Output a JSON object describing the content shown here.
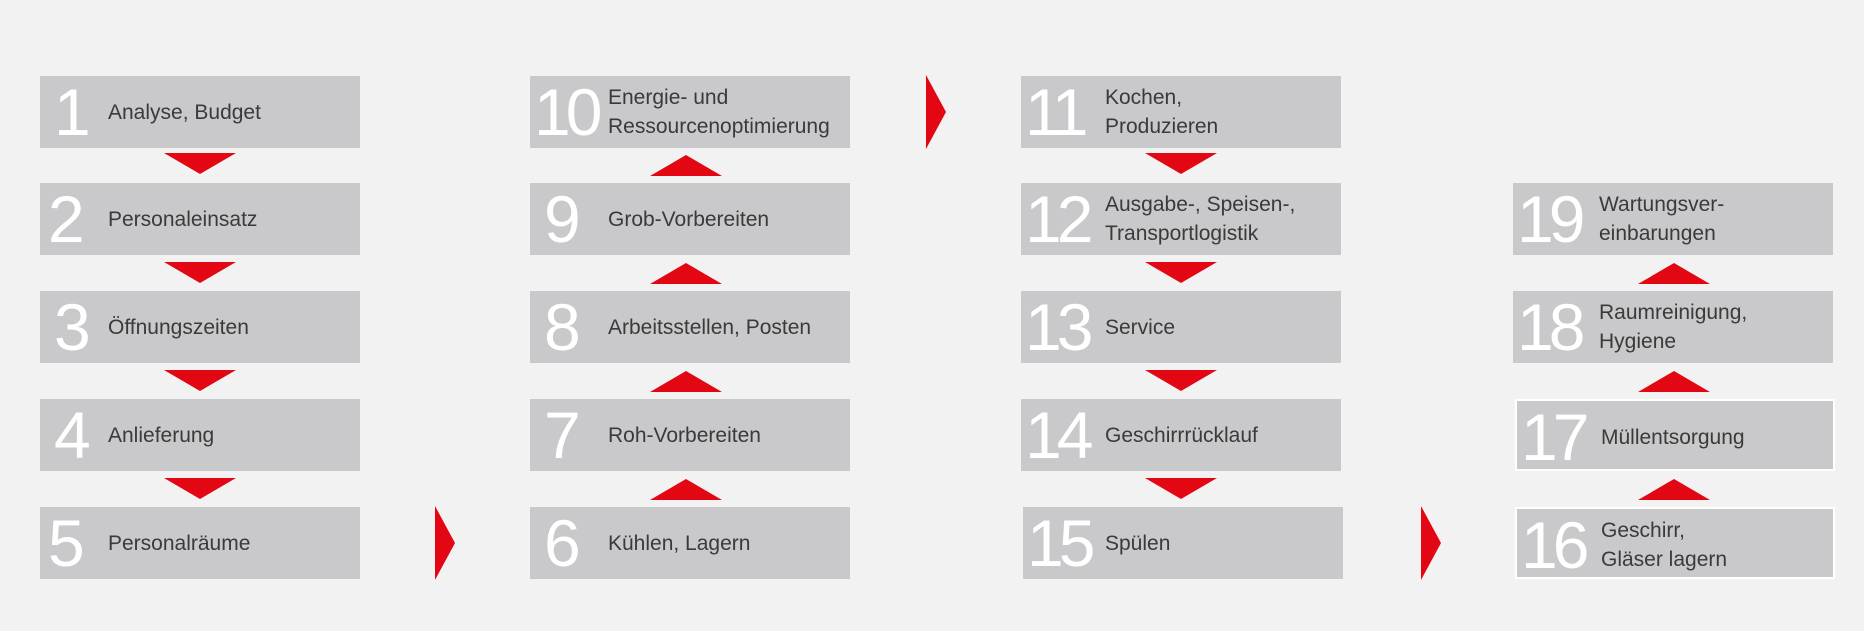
{
  "colors": {
    "box": "#c9c9cb",
    "arrow": "#e30613",
    "number": "#ffffff",
    "text": "#3a3a3a",
    "background": "#f2f2f2"
  },
  "steps": [
    {
      "num": "1",
      "label": "Analyse, Budget"
    },
    {
      "num": "2",
      "label": "Personaleinsatz"
    },
    {
      "num": "3",
      "label": "Öffnungszeiten"
    },
    {
      "num": "4",
      "label": "Anlieferung"
    },
    {
      "num": "5",
      "label": "Personalräume"
    },
    {
      "num": "6",
      "label": "Kühlen, Lagern"
    },
    {
      "num": "7",
      "label": "Roh-Vorbereiten"
    },
    {
      "num": "8",
      "label": "Arbeitsstellen, Posten"
    },
    {
      "num": "9",
      "label": "Grob-Vorbereiten"
    },
    {
      "num": "10",
      "label": "Energie- und\nRessourcenoptimierung"
    },
    {
      "num": "11",
      "label": "Kochen,\nProduzieren"
    },
    {
      "num": "12",
      "label": "Ausgabe-, Speisen-,\nTransportlogistik"
    },
    {
      "num": "13",
      "label": "Service"
    },
    {
      "num": "14",
      "label": "Geschirrrücklauf"
    },
    {
      "num": "15",
      "label": "Spülen"
    },
    {
      "num": "16",
      "label": "Geschirr,\nGläser lagern"
    },
    {
      "num": "17",
      "label": "Müllentsorgung"
    },
    {
      "num": "18",
      "label": "Raumreinigung,\nHygiene"
    },
    {
      "num": "19",
      "label": "Wartungsver-\neinbarungen"
    }
  ]
}
